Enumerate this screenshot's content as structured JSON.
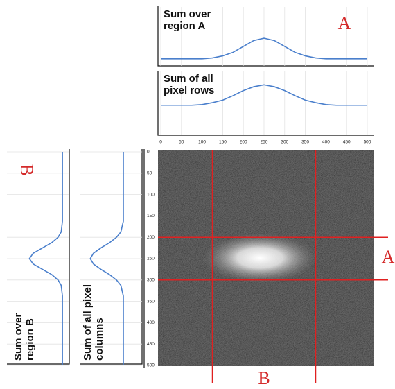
{
  "chart_data": [
    {
      "type": "line",
      "title": "Sum over region A",
      "orientation": "horizontal",
      "color": "#4a7fcc",
      "x": [
        0,
        25,
        50,
        75,
        100,
        125,
        150,
        175,
        200,
        225,
        250,
        275,
        300,
        325,
        350,
        375,
        400,
        425,
        450,
        475,
        500
      ],
      "values": [
        12,
        12,
        12,
        12,
        12,
        13.5,
        17,
        23,
        33,
        43,
        47,
        43,
        33,
        23,
        17,
        13.5,
        12,
        12,
        12,
        12,
        12
      ],
      "xlim": [
        0,
        500
      ],
      "ylim": [
        0,
        100
      ]
    },
    {
      "type": "line",
      "title": "Sum of all pixel rows",
      "orientation": "horizontal",
      "color": "#4a7fcc",
      "x": [
        0,
        25,
        50,
        75,
        100,
        125,
        150,
        175,
        200,
        225,
        250,
        275,
        300,
        325,
        350,
        375,
        400,
        425,
        450,
        475,
        500
      ],
      "values": [
        47,
        47,
        47,
        47,
        48,
        51,
        55,
        62,
        70,
        76,
        79,
        76,
        70,
        62,
        55,
        51,
        48,
        47,
        47,
        47,
        47
      ],
      "xlim": [
        0,
        500
      ],
      "ylim": [
        0,
        100
      ]
    },
    {
      "type": "line",
      "title": "Sum over region B",
      "orientation": "vertical",
      "color": "#4a7fcc",
      "x": [
        0,
        12.5,
        25,
        37.5,
        50,
        62.5,
        75,
        87.5,
        100,
        112.5,
        125,
        137.5,
        150,
        162.5,
        175,
        187.5,
        200,
        212.5,
        225,
        237.5,
        250,
        262.5,
        275,
        287.5,
        300,
        312.5,
        325,
        337.5,
        350,
        362.5,
        375,
        387.5,
        400,
        412.5,
        425,
        437.5,
        450,
        462.5,
        475,
        487.5,
        500
      ],
      "values": [
        11,
        11,
        11,
        11,
        11,
        11,
        11,
        11,
        11,
        11,
        11,
        11,
        11,
        11,
        12,
        13,
        18,
        28,
        43,
        58,
        64,
        58,
        43,
        28,
        18,
        13,
        12,
        11,
        11,
        11,
        11,
        11,
        11,
        11,
        11,
        11,
        11,
        11,
        11,
        11,
        11
      ],
      "xlim": [
        0,
        500
      ],
      "ylim": [
        0,
        100
      ]
    },
    {
      "type": "line",
      "title": "Sum of all pixel columns",
      "orientation": "vertical",
      "color": "#4a7fcc",
      "x": [
        0,
        12.5,
        25,
        37.5,
        50,
        62.5,
        75,
        87.5,
        100,
        112.5,
        125,
        137.5,
        150,
        162.5,
        175,
        187.5,
        200,
        212.5,
        225,
        237.5,
        250,
        262.5,
        275,
        287.5,
        300,
        312.5,
        325,
        337.5,
        350,
        362.5,
        375,
        387.5,
        400,
        412.5,
        425,
        437.5,
        450,
        462.5,
        475,
        487.5,
        500
      ],
      "values": [
        30,
        30,
        30,
        30,
        30,
        30,
        30,
        30,
        30,
        30,
        30,
        30,
        30,
        30,
        32,
        34,
        41,
        52,
        66,
        78,
        83,
        78,
        66,
        52,
        41,
        34,
        32,
        30,
        30,
        30,
        30,
        30,
        30,
        30,
        30,
        30,
        30,
        30,
        30,
        30,
        30
      ],
      "xlim": [
        0,
        500
      ],
      "ylim": [
        0,
        100
      ]
    },
    {
      "type": "image",
      "xlim": [
        0,
        500
      ],
      "ylim": [
        0,
        500
      ],
      "xticks": [
        0,
        50,
        100,
        150,
        200,
        250,
        300,
        350,
        400,
        450,
        500
      ],
      "yticks": [
        0,
        50,
        100,
        150,
        200,
        250,
        300,
        350,
        400,
        450,
        500
      ],
      "line_color": "#e02020",
      "regions": [
        {
          "name": "A",
          "rows": [
            200,
            300
          ]
        },
        {
          "name": "B",
          "columns": [
            125,
            375
          ]
        }
      ]
    }
  ]
}
